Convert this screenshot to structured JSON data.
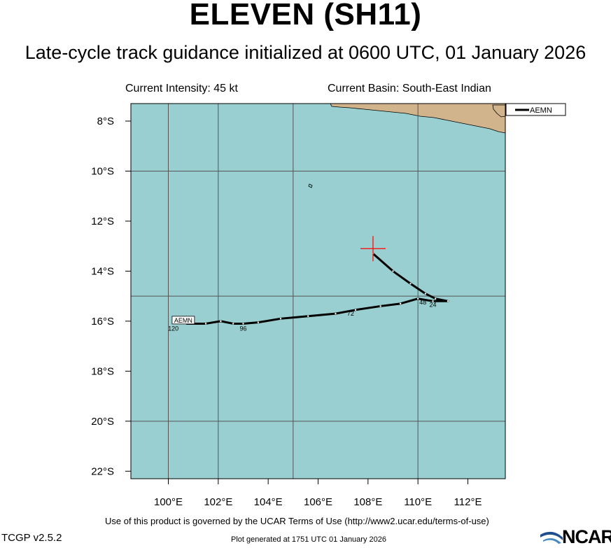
{
  "header": {
    "title": "ELEVEN (SH11)",
    "subtitle": "Late-cycle track guidance initialized at 0600 UTC, 01 January 2026",
    "intensity": "Current Intensity: 45 kt",
    "basin": "Current Basin: South-East Indian"
  },
  "map": {
    "lon_range": [
      98.5,
      113.5
    ],
    "lat_range": [
      -22.3,
      -7.3
    ],
    "lon_ticks": [
      {
        "value": 100,
        "label": "100°E"
      },
      {
        "value": 102,
        "label": "102°E"
      },
      {
        "value": 104,
        "label": "104°E"
      },
      {
        "value": 106,
        "label": "106°E"
      },
      {
        "value": 108,
        "label": "108°E"
      },
      {
        "value": 110,
        "label": "110°E"
      },
      {
        "value": 112,
        "label": "112°E"
      }
    ],
    "lat_ticks": [
      {
        "value": -8,
        "label": "8°S"
      },
      {
        "value": -10,
        "label": "10°S"
      },
      {
        "value": -12,
        "label": "12°S"
      },
      {
        "value": -14,
        "label": "14°S"
      },
      {
        "value": -16,
        "label": "16°S"
      },
      {
        "value": -18,
        "label": "18°S"
      },
      {
        "value": -20,
        "label": "20°S"
      },
      {
        "value": -22,
        "label": "22°S"
      }
    ],
    "grid_lons": [
      100,
      102,
      105,
      110
    ],
    "grid_lats": [
      -10,
      -15,
      -20
    ],
    "ocean_color": "#99cfd0",
    "land_color": "#d2b48c",
    "current_position": {
      "lon": 108.2,
      "lat": -13.1,
      "color": "#ff0000"
    },
    "legend": {
      "label": "AEMN",
      "position": "top-right"
    }
  },
  "chart_data": {
    "type": "line",
    "title": "ELEVEN (SH11)",
    "series": [
      {
        "name": "AEMN",
        "color": "#000000",
        "points": [
          {
            "lon": 108.2,
            "lat": -13.3
          },
          {
            "lon": 109.0,
            "lat": -14.0
          },
          {
            "lon": 109.7,
            "lat": -14.5
          },
          {
            "lon": 110.3,
            "lat": -14.9
          },
          {
            "lon": 110.7,
            "lat": -15.1
          },
          {
            "lon": 111.2,
            "lat": -15.2
          },
          {
            "lon": 110.6,
            "lat": -15.2
          },
          {
            "lon": 110.0,
            "lat": -15.1
          },
          {
            "lon": 109.3,
            "lat": -15.3
          },
          {
            "lon": 108.5,
            "lat": -15.4
          },
          {
            "lon": 107.5,
            "lat": -15.55
          },
          {
            "lon": 106.7,
            "lat": -15.7
          },
          {
            "lon": 105.6,
            "lat": -15.8
          },
          {
            "lon": 104.5,
            "lat": -15.9
          },
          {
            "lon": 103.6,
            "lat": -16.05
          },
          {
            "lon": 103.0,
            "lat": -16.1
          },
          {
            "lon": 102.6,
            "lat": -16.1
          },
          {
            "lon": 102.1,
            "lat": -16.0
          },
          {
            "lon": 101.5,
            "lat": -16.1
          },
          {
            "lon": 100.7,
            "lat": -16.1
          }
        ],
        "tau_labels": [
          {
            "text": "24",
            "lon": 110.6,
            "lat": -15.35
          },
          {
            "text": "48",
            "lon": 110.2,
            "lat": -15.25
          },
          {
            "text": "72",
            "lon": 107.3,
            "lat": -15.7
          },
          {
            "text": "96",
            "lon": 103.0,
            "lat": -16.3
          },
          {
            "text": "120",
            "lon": 100.2,
            "lat": -16.3
          }
        ],
        "start_label": {
          "text": "AEMN",
          "lon": 100.6,
          "lat": -16.0
        }
      }
    ]
  },
  "footer": {
    "terms": "Use of this product is governed by the UCAR Terms of Use (http://www2.ucar.edu/terms-of-use)",
    "generated": "Plot generated at 1751 UTC   01 January 2026",
    "version": "TCGP v2.5.2",
    "logo_text": "NCAR"
  }
}
